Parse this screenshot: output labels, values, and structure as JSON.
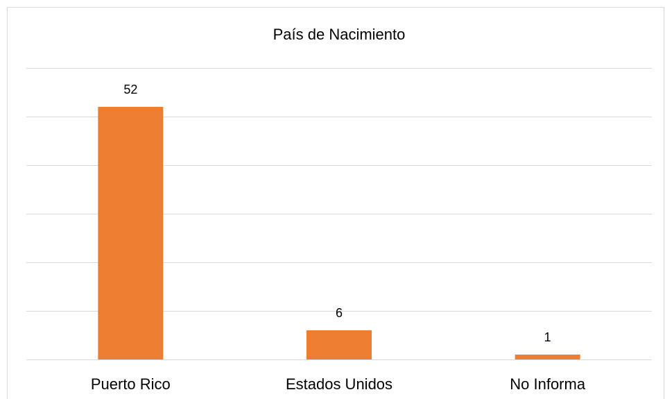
{
  "chart_data": {
    "type": "bar",
    "title": "País de Nacimiento",
    "categories": [
      "Puerto Rico",
      "Estados Unidos",
      "No Informa"
    ],
    "values": [
      52,
      6,
      1
    ],
    "color": "#ed7d31",
    "ylim": [
      0,
      60
    ],
    "yticks": [
      0,
      10,
      20,
      30,
      40,
      50,
      60
    ],
    "grid": true
  }
}
